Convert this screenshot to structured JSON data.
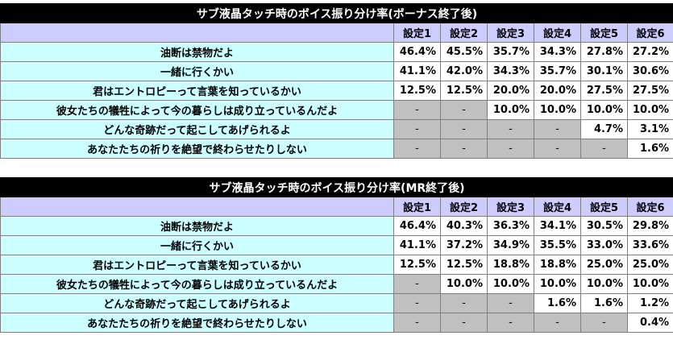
{
  "tables": [
    {
      "title": "サブ液晶タッチ時のボイス振り分け率(ボーナス終了後)",
      "columns": [
        "設定1",
        "設定2",
        "設定3",
        "設定4",
        "設定5",
        "設定6"
      ],
      "rows": [
        {
          "label": "油断は禁物だよ",
          "values": [
            "46.4%",
            "45.5%",
            "35.7%",
            "34.3%",
            "27.8%",
            "27.2%"
          ]
        },
        {
          "label": "一緒に行くかい",
          "values": [
            "41.1%",
            "42.0%",
            "34.3%",
            "35.7%",
            "30.1%",
            "30.6%"
          ]
        },
        {
          "label": "君はエントロピーって言葉を知っているかい",
          "values": [
            "12.5%",
            "12.5%",
            "20.0%",
            "20.0%",
            "27.5%",
            "27.5%"
          ]
        },
        {
          "label": "彼女たちの犠牲によって今の暮らしは成り立っているんだよ",
          "values": [
            "-",
            "-",
            "10.0%",
            "10.0%",
            "10.0%",
            "10.0%"
          ]
        },
        {
          "label": "どんな奇跡だって起こしてあげられるよ",
          "values": [
            "-",
            "-",
            "-",
            "-",
            "4.7%",
            "3.1%"
          ]
        },
        {
          "label": "あなたたちの祈りを絶望で終わらせたりしない",
          "values": [
            "-",
            "-",
            "-",
            "-",
            "-",
            "1.6%"
          ]
        }
      ]
    },
    {
      "title": "サブ液晶タッチ時のボイス振り分け率(MR終了後)",
      "columns": [
        "設定1",
        "設定2",
        "設定3",
        "設定4",
        "設定5",
        "設定6"
      ],
      "rows": [
        {
          "label": "油断は禁物だよ",
          "values": [
            "46.4%",
            "40.3%",
            "36.3%",
            "34.1%",
            "30.5%",
            "29.8%"
          ]
        },
        {
          "label": "一緒に行くかい",
          "values": [
            "41.1%",
            "37.2%",
            "34.9%",
            "35.5%",
            "33.0%",
            "33.6%"
          ]
        },
        {
          "label": "君はエントロピーって言葉を知っているかい",
          "values": [
            "12.5%",
            "12.5%",
            "18.8%",
            "18.8%",
            "25.0%",
            "25.0%"
          ]
        },
        {
          "label": "彼女たちの犠牲によって今の暮らしは成り立っているんだよ",
          "values": [
            "-",
            "10.0%",
            "10.0%",
            "10.0%",
            "10.0%",
            "10.0%"
          ]
        },
        {
          "label": "どんな奇跡だって起こしてあげられるよ",
          "values": [
            "-",
            "-",
            "-",
            "1.6%",
            "1.6%",
            "1.2%"
          ]
        },
        {
          "label": "あなたたちの祈りを絶望で終わらせたりしない",
          "values": [
            "-",
            "-",
            "-",
            "-",
            "-",
            "0.4%"
          ]
        }
      ]
    }
  ]
}
